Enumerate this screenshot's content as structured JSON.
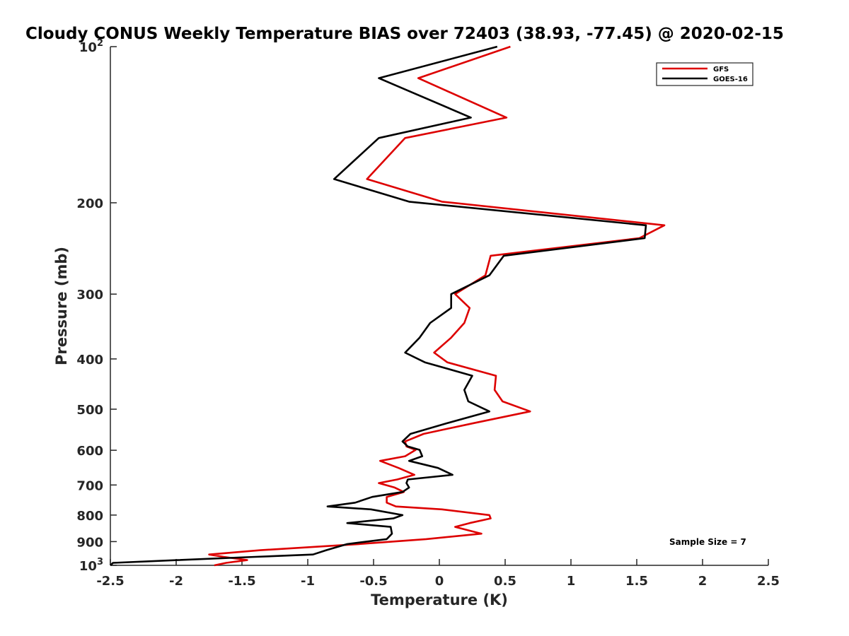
{
  "chart_data": {
    "type": "line",
    "title": "Cloudy CONUS Weekly Temperature BIAS over 72403 (38.93, -77.45) @ 2020-02-15",
    "xlabel": "Temperature (K)",
    "ylabel": "Pressure (mb)",
    "xlim": [
      -2.5,
      2.5
    ],
    "ylim": [
      100,
      1000
    ],
    "y_scale": "log",
    "y_reversed": true,
    "x_ticks": [
      {
        "v": -2.5,
        "label": "-2.5"
      },
      {
        "v": -2,
        "label": "-2"
      },
      {
        "v": -1.5,
        "label": "-1.5"
      },
      {
        "v": -1,
        "label": "-1"
      },
      {
        "v": -0.5,
        "label": "-0.5"
      },
      {
        "v": 0,
        "label": "0"
      },
      {
        "v": 0.5,
        "label": "0.5"
      },
      {
        "v": 1,
        "label": "1"
      },
      {
        "v": 1.5,
        "label": "1.5"
      },
      {
        "v": 2,
        "label": "2"
      },
      {
        "v": 2.5,
        "label": "2.5"
      }
    ],
    "y_ticks": [
      {
        "v": 100,
        "base": "10",
        "exp": "2"
      },
      {
        "v": 200,
        "base": "200",
        "exp": ""
      },
      {
        "v": 300,
        "base": "300",
        "exp": ""
      },
      {
        "v": 400,
        "base": "400",
        "exp": ""
      },
      {
        "v": 500,
        "base": "500",
        "exp": ""
      },
      {
        "v": 600,
        "base": "600",
        "exp": ""
      },
      {
        "v": 700,
        "base": "700",
        "exp": ""
      },
      {
        "v": 800,
        "base": "800",
        "exp": ""
      },
      {
        "v": 900,
        "base": "900",
        "exp": ""
      },
      {
        "v": 1000,
        "base": "10",
        "exp": "3"
      }
    ],
    "grid": false,
    "legend_position": "top-right",
    "annotation": "Sample Size = 7",
    "series": [
      {
        "name": "GFS",
        "color": "#dd0000",
        "points": [
          [
            0.54,
            100
          ],
          [
            -0.16,
            115
          ],
          [
            0.51,
            137
          ],
          [
            -0.26,
            150
          ],
          [
            -0.55,
            180
          ],
          [
            0.02,
            199
          ],
          [
            1.71,
            221
          ],
          [
            1.52,
            234
          ],
          [
            0.39,
            253
          ],
          [
            0.35,
            276
          ],
          [
            0.12,
            300
          ],
          [
            0.23,
            319
          ],
          [
            0.19,
            341
          ],
          [
            0.09,
            364
          ],
          [
            -0.04,
            389
          ],
          [
            0.06,
            406
          ],
          [
            0.43,
            431
          ],
          [
            0.42,
            459
          ],
          [
            0.48,
            483
          ],
          [
            0.69,
            505
          ],
          [
            0.26,
            532
          ],
          [
            -0.12,
            558
          ],
          [
            -0.26,
            577
          ],
          [
            -0.25,
            590
          ],
          [
            -0.18,
            599
          ],
          [
            -0.26,
            616
          ],
          [
            -0.45,
            629
          ],
          [
            -0.31,
            649
          ],
          [
            -0.19,
            669
          ],
          [
            -0.32,
            683
          ],
          [
            -0.46,
            694
          ],
          [
            -0.34,
            708
          ],
          [
            -0.27,
            722
          ],
          [
            -0.4,
            738
          ],
          [
            -0.4,
            757
          ],
          [
            -0.33,
            770
          ],
          [
            0.02,
            780
          ],
          [
            0.38,
            800
          ],
          [
            0.39,
            812
          ],
          [
            0.23,
            829
          ],
          [
            0.12,
            843
          ],
          [
            0.32,
            869
          ],
          [
            -0.1,
            890
          ],
          [
            -0.61,
            910
          ],
          [
            -1.36,
            935
          ],
          [
            -1.75,
            953
          ],
          [
            -1.64,
            963
          ],
          [
            -1.46,
            977
          ],
          [
            -1.62,
            989
          ],
          [
            -1.71,
            1000
          ]
        ]
      },
      {
        "name": "GOES-16",
        "color": "#000000",
        "points": [
          [
            0.44,
            100
          ],
          [
            -0.46,
            115
          ],
          [
            0.24,
            137
          ],
          [
            -0.46,
            150
          ],
          [
            -0.8,
            180
          ],
          [
            -0.23,
            199
          ],
          [
            1.57,
            221
          ],
          [
            1.56,
            234
          ],
          [
            0.49,
            253
          ],
          [
            0.38,
            276
          ],
          [
            0.09,
            300
          ],
          [
            0.09,
            319
          ],
          [
            -0.07,
            341
          ],
          [
            -0.15,
            364
          ],
          [
            -0.26,
            389
          ],
          [
            -0.11,
            406
          ],
          [
            0.25,
            431
          ],
          [
            0.19,
            459
          ],
          [
            0.22,
            483
          ],
          [
            0.38,
            505
          ],
          [
            0.06,
            532
          ],
          [
            -0.22,
            558
          ],
          [
            -0.28,
            577
          ],
          [
            -0.24,
            590
          ],
          [
            -0.15,
            599
          ],
          [
            -0.13,
            616
          ],
          [
            -0.23,
            629
          ],
          [
            -0.01,
            649
          ],
          [
            0.1,
            669
          ],
          [
            -0.24,
            683
          ],
          [
            -0.25,
            694
          ],
          [
            -0.23,
            708
          ],
          [
            -0.28,
            722
          ],
          [
            -0.51,
            738
          ],
          [
            -0.64,
            757
          ],
          [
            -0.85,
            770
          ],
          [
            -0.52,
            780
          ],
          [
            -0.28,
            800
          ],
          [
            -0.35,
            812
          ],
          [
            -0.7,
            829
          ],
          [
            -0.37,
            843
          ],
          [
            -0.36,
            869
          ],
          [
            -0.4,
            890
          ],
          [
            -0.7,
            910
          ],
          [
            -0.86,
            935
          ],
          [
            -0.96,
            953
          ],
          [
            -1.4,
            963
          ],
          [
            -1.99,
            977
          ],
          [
            -2.48,
            989
          ],
          [
            -2.5,
            1000
          ]
        ]
      }
    ]
  }
}
